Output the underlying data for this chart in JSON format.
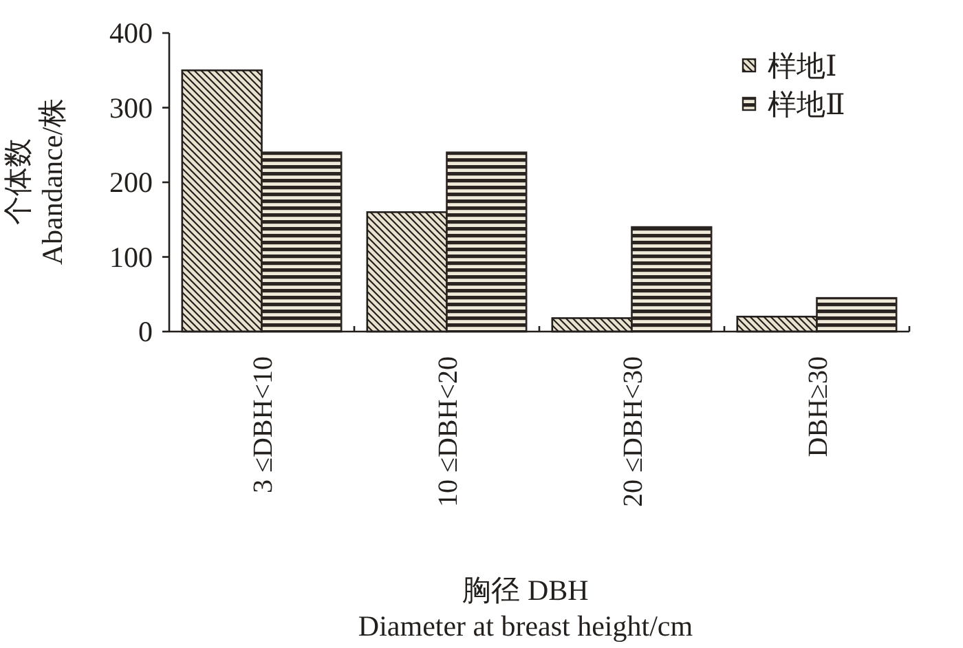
{
  "chart_data": {
    "type": "bar",
    "xlabel": "胸径 DBH\nDiameter at breast height/cm",
    "ylabel": "个体数\nAbandance/株",
    "categories": [
      "3 ≤DBH<10",
      "10 ≤DBH<20",
      "20 ≤DBH<30",
      "DBH≥30"
    ],
    "series": [
      {
        "name": "样地Ⅰ",
        "color": "#231f1c",
        "values": [
          350,
          160,
          18,
          20
        ]
      },
      {
        "name": "样地Ⅱ",
        "color": "#2b2521",
        "values": [
          240,
          240,
          140,
          45
        ]
      }
    ],
    "ylim": [
      0,
      400
    ],
    "yticks": [
      0,
      100,
      200,
      300,
      400
    ],
    "legend": "top right",
    "grid": false
  }
}
